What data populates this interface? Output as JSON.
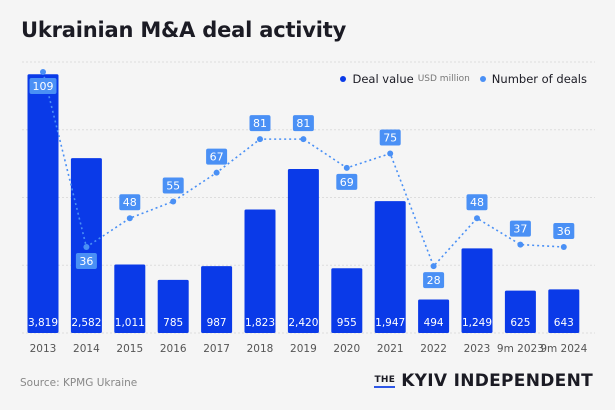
{
  "header": {
    "title": "Ukrainian M&A deal activity"
  },
  "legend": {
    "deal_value_label": "Deal value",
    "deal_value_unit": "USD million",
    "deal_count_label": "Number of deals"
  },
  "colors": {
    "bar": "#0a3ae8",
    "line": "#4a90f5",
    "label_bg": "#4a90f5",
    "grid": "#dddddd",
    "text": "#1b1b24"
  },
  "footer": {
    "source": "Source: KPMG Ukraine",
    "brand_the": "THE",
    "brand_name": "KYIV INDEPENDENT"
  },
  "chart_data": {
    "type": "bar",
    "title": "Ukrainian M&A deal activity",
    "categories": [
      "2013",
      "2014",
      "2015",
      "2016",
      "2017",
      "2018",
      "2019",
      "2020",
      "2021",
      "2022",
      "2023",
      "9m 2023",
      "9m 2024"
    ],
    "series": [
      {
        "name": "Deal value (USD million)",
        "type": "bar",
        "values": [
          3819,
          2582,
          1011,
          785,
          987,
          1823,
          2420,
          955,
          1947,
          494,
          1249,
          625,
          643
        ],
        "labels": [
          "3,819",
          "2,582",
          "1,011",
          "785",
          "987",
          "1,823",
          "2,420",
          "955",
          "1,947",
          "494",
          "1,249",
          "625",
          "643"
        ]
      },
      {
        "name": "Number of deals",
        "type": "line",
        "values": [
          109,
          36,
          48,
          55,
          67,
          81,
          81,
          69,
          75,
          28,
          48,
          37,
          36
        ]
      }
    ],
    "ylim": [
      0,
      4000
    ],
    "grid": true,
    "legend": "top-right",
    "xlabel": "",
    "ylabel": ""
  }
}
